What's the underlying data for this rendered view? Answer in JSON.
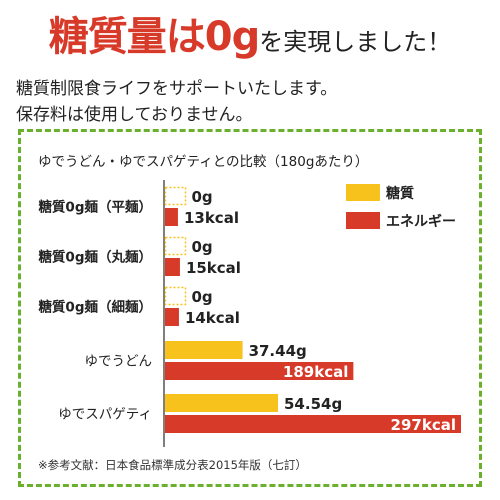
{
  "headline": {
    "strong": "糖質量は0g",
    "soft": "を実現しました！"
  },
  "subtext": [
    "糖質制限食ライフをサポートいたします。",
    "保存料は使用しておりません。"
  ],
  "footnote": "※参考文献：日本食品標準成分表2015年版（七訂）",
  "colors": {
    "sugar": "#f7c21b",
    "energy": "#d83a2a",
    "border": "#6ab02c",
    "axis": "#555555"
  },
  "chart_data": {
    "type": "bar",
    "orientation": "horizontal",
    "title": "ゆでうどん・ゆでスパゲティとの比較（180gあたり）",
    "categories": [
      "糖質0g麺（平麺）",
      "糖質0g麺（丸麺）",
      "糖質0g麺（細麺）",
      "ゆでうどん",
      "ゆでスパゲティ"
    ],
    "category_bold": [
      true,
      true,
      true,
      false,
      false
    ],
    "series": [
      {
        "name": "糖質",
        "values": [
          0,
          0,
          0,
          37.44,
          54.54
        ],
        "labels": [
          "0g",
          "0g",
          "0g",
          "37.44g",
          "54.54g"
        ]
      },
      {
        "name": "エネルギー",
        "values": [
          13,
          15,
          14,
          189,
          297
        ],
        "labels": [
          "13kcal",
          "15kcal",
          "14kcal",
          "189kcal",
          "297kcal"
        ]
      }
    ],
    "legend_position": "top-right",
    "grid": false
  }
}
